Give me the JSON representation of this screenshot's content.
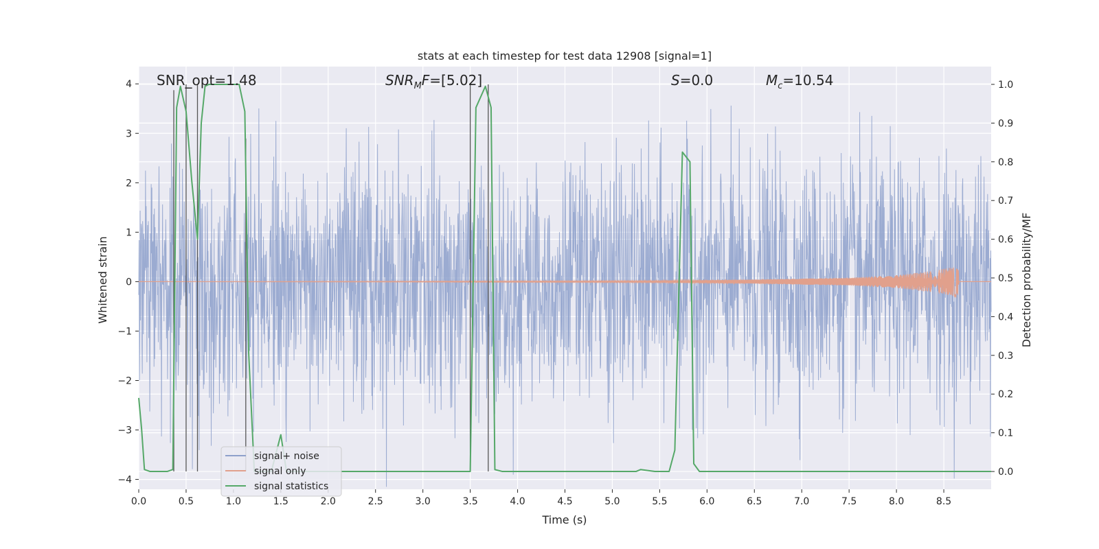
{
  "chart_data": {
    "type": "line",
    "title": "stats at each timestep for test data 12908 [signal=1]",
    "xlabel": "Time (s)",
    "ylabel_left": "Whitened strain",
    "ylabel_right": "Detection probability/MF",
    "xlim": [
      0,
      9.0
    ],
    "ylim_left": [
      -4.2,
      4.35
    ],
    "ylim_right": [
      -0.046,
      1.046
    ],
    "x_ticks": [
      "0.0",
      "0.5",
      "1.0",
      "1.5",
      "2.0",
      "2.5",
      "3.0",
      "3.5",
      "4.0",
      "4.5",
      "5.0",
      "5.5",
      "6.0",
      "6.5",
      "7.0",
      "7.5",
      "8.0",
      "8.5"
    ],
    "y_left_ticks": [
      "−4",
      "−3",
      "−2",
      "−1",
      "0",
      "1",
      "2",
      "3",
      "4"
    ],
    "y_right_ticks": [
      "0.0",
      "0.1",
      "0.2",
      "0.3",
      "0.4",
      "0.5",
      "0.6",
      "0.7",
      "0.8",
      "0.9",
      "1.0"
    ],
    "grid": true,
    "legend_position": "lower-left",
    "annotations": [
      {
        "id": "snr-opt",
        "text": "SNR_opt=1.48"
      },
      {
        "id": "snr-mf",
        "base": "SNR",
        "sub": "M",
        "rest": "F=[5.02]"
      },
      {
        "id": "s-val",
        "base": "S",
        "rest": "=0.0"
      },
      {
        "id": "mc-val",
        "base": "M",
        "sub": "c",
        "rest": "=10.54"
      }
    ],
    "series": [
      {
        "name": "signal+ noise",
        "color": "#8da0cb",
        "description": "whitened strain noise, amplitude approx ±1.6 typical, peaks to ±4",
        "amplitude_envelope": [
          [
            0,
            1.6
          ],
          [
            9.0,
            1.6
          ]
        ]
      },
      {
        "name": "signal only",
        "color": "#e1a08c",
        "description": "chirp signal growing toward merger",
        "envelope": [
          [
            0,
            0.0
          ],
          [
            5.5,
            0.02
          ],
          [
            6.5,
            0.04
          ],
          [
            7.5,
            0.08
          ],
          [
            8.0,
            0.13
          ],
          [
            8.4,
            0.22
          ],
          [
            8.65,
            0.32
          ],
          [
            8.66,
            0.0
          ]
        ]
      },
      {
        "name": "signal statistics",
        "color": "#55a868",
        "axis": "right",
        "x": [
          0.0,
          0.03,
          0.06,
          0.12,
          0.2,
          0.3,
          0.36,
          0.4,
          0.44,
          0.5,
          0.56,
          0.62,
          0.66,
          0.7,
          0.74,
          0.8,
          1.0,
          1.06,
          1.12,
          1.16,
          1.22,
          1.4,
          1.5,
          1.56,
          1.7,
          2.0,
          3.0,
          3.5,
          3.56,
          3.66,
          3.72,
          3.76,
          3.84,
          4.2,
          5.0,
          5.25,
          5.3,
          5.45,
          5.6,
          5.66,
          5.74,
          5.82,
          5.86,
          5.92,
          6.5,
          7.5,
          8.5,
          9.0
        ],
        "y": [
          0.19,
          0.11,
          0.005,
          0.0,
          0.0,
          0.0,
          0.005,
          0.94,
          0.995,
          0.93,
          0.75,
          0.6,
          0.9,
          0.995,
          1.0,
          1.0,
          1.0,
          1.0,
          0.93,
          0.31,
          0.0,
          0.0,
          0.095,
          0.0,
          0.0,
          0.0,
          0.0,
          0.0,
          0.94,
          0.995,
          0.94,
          0.005,
          0.0,
          0.0,
          0.0,
          0.0,
          0.005,
          0.0,
          0.0,
          0.055,
          0.825,
          0.8,
          0.02,
          0.0,
          0.0,
          0.0,
          0.0,
          0.0
        ]
      }
    ],
    "vertical_markers": [
      {
        "x": 0.37,
        "y_top": 0.985
      },
      {
        "x": 0.5,
        "y_top": 1.0
      },
      {
        "x": 0.62,
        "y_top": 1.0
      },
      {
        "x": 1.13,
        "y_top": 0.86
      },
      {
        "x": 3.5,
        "y_top": 1.0
      },
      {
        "x": 3.69,
        "y_top": 1.0
      }
    ]
  }
}
